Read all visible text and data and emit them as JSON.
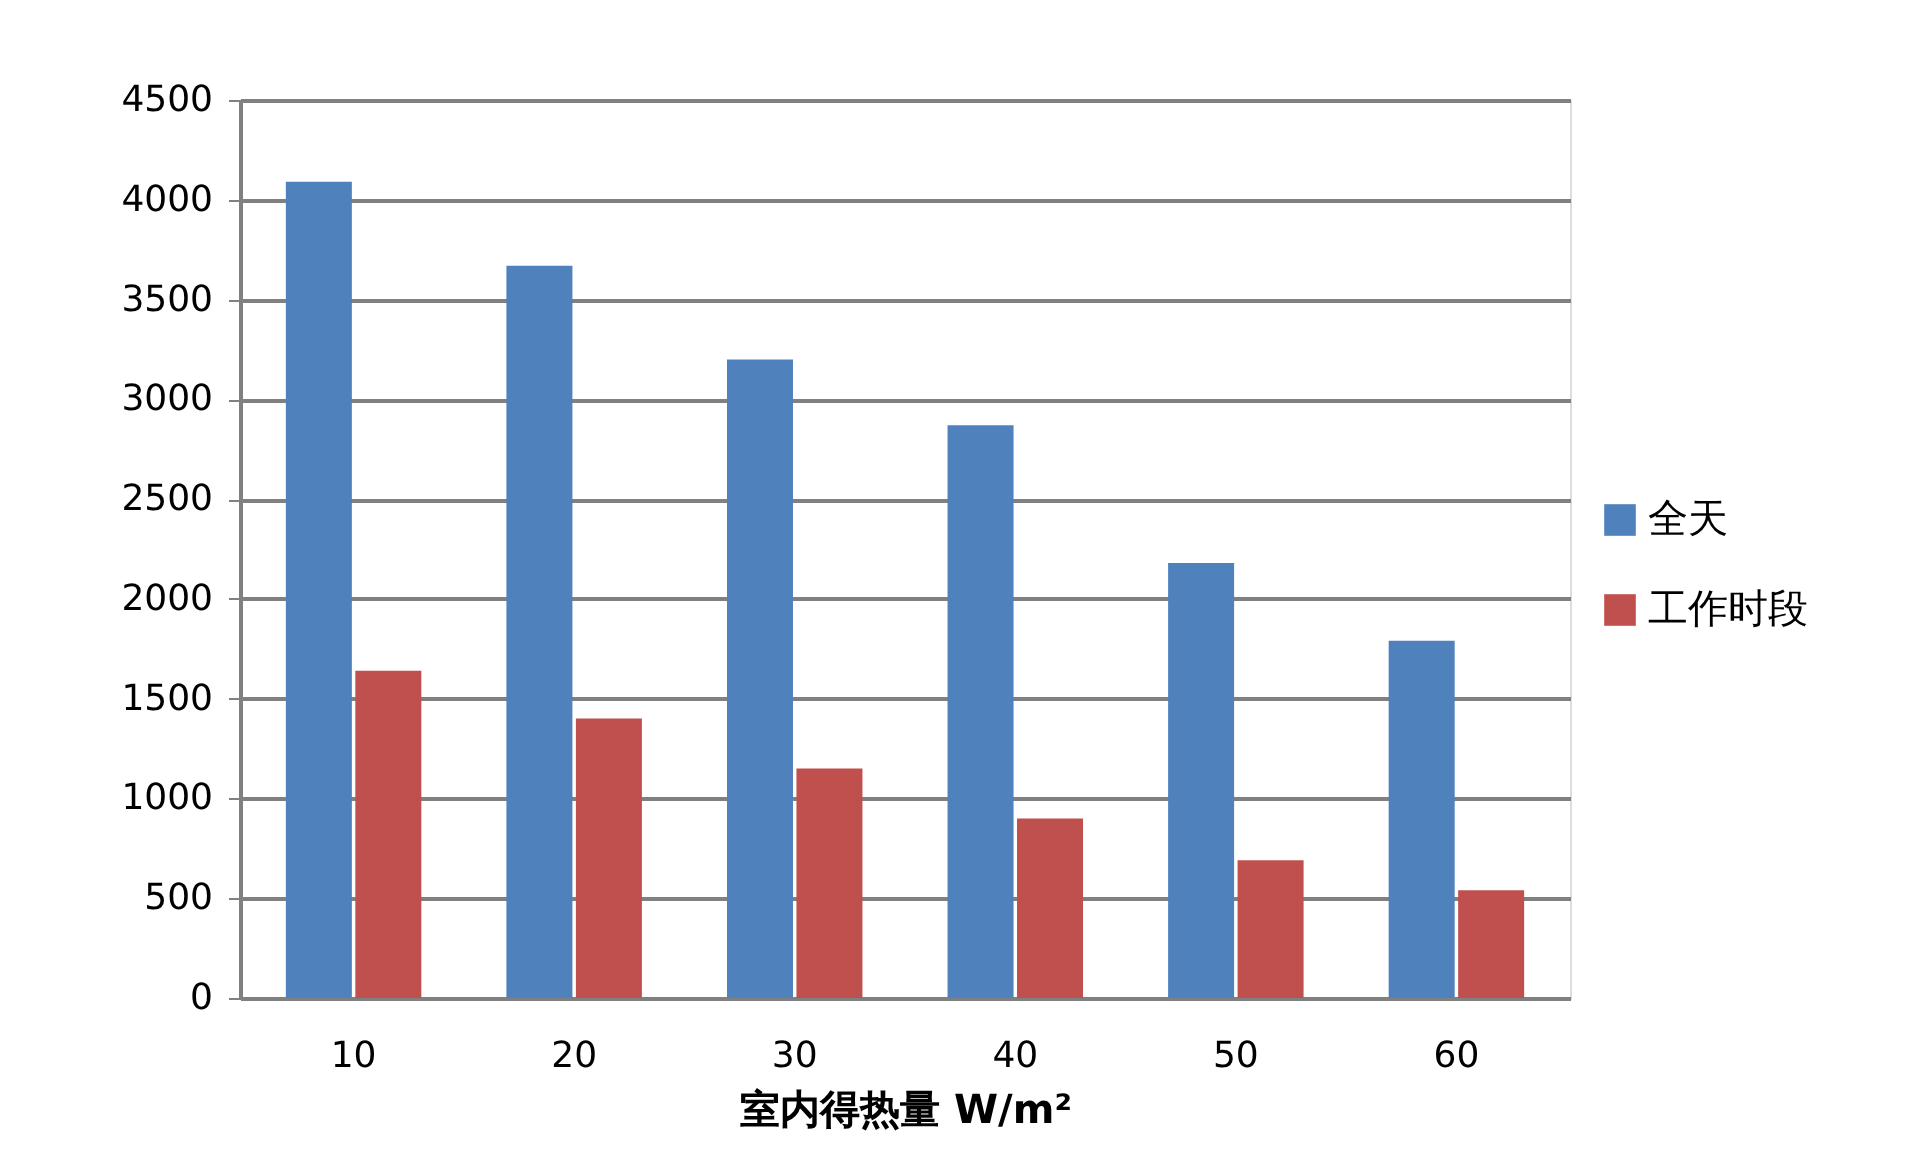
{
  "chart_data": {
    "type": "bar",
    "xlabel": "室内得热量 W/m²",
    "categories": [
      "10",
      "20",
      "30",
      "40",
      "50",
      "60"
    ],
    "series": [
      {
        "name": "全天",
        "color": "#4f81bd",
        "values": [
          4090,
          3670,
          3200,
          2870,
          2180,
          1790
        ]
      },
      {
        "name": "工作时段",
        "color": "#c0504d",
        "values": [
          1640,
          1400,
          1150,
          900,
          690,
          540
        ]
      }
    ],
    "ylim": [
      0,
      4500
    ],
    "yticks": [
      0,
      500,
      1000,
      1500,
      2000,
      2500,
      3000,
      3500,
      4000,
      4500
    ],
    "grid": "y",
    "legend": "right"
  }
}
